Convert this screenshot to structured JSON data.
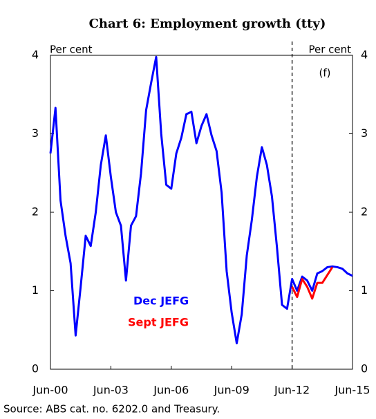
{
  "chart_data": {
    "type": "line",
    "title": "Chart 6: Employment growth (tty)",
    "y_label": "Per cent",
    "y2_label": "Per cent",
    "annotation": "(f)",
    "source": "Source: ABS cat. no. 6202.0 and Treasury.",
    "categories": [
      "Jun-00",
      null,
      null,
      null,
      null,
      null,
      null,
      null,
      null,
      null,
      null,
      null,
      "Jun-03",
      null,
      null,
      null,
      null,
      null,
      null,
      null,
      null,
      null,
      null,
      null,
      "Jun-06",
      null,
      null,
      null,
      null,
      null,
      null,
      null,
      null,
      null,
      null,
      null,
      "Jun-09",
      null,
      null,
      null,
      null,
      null,
      null,
      null,
      null,
      null,
      null,
      null,
      "Jun-12",
      null,
      null,
      null,
      null,
      null,
      null,
      null,
      null,
      null,
      null,
      null,
      "Jun-15"
    ],
    "series": [
      {
        "name": "Dec JEFG",
        "color": "#0000ff",
        "values": [
          2.75,
          3.33,
          2.15,
          1.7,
          1.35,
          0.43,
          1.05,
          1.7,
          1.57,
          2.0,
          2.6,
          2.98,
          2.45,
          2.0,
          1.83,
          1.13,
          1.83,
          1.95,
          2.5,
          3.3,
          3.65,
          3.98,
          3.0,
          2.35,
          2.3,
          2.75,
          2.95,
          3.25,
          3.28,
          2.88,
          3.1,
          3.25,
          2.98,
          2.78,
          2.25,
          1.25,
          0.72,
          0.33,
          0.7,
          1.45,
          1.9,
          2.45,
          2.83,
          2.6,
          2.2,
          1.55,
          0.82,
          0.77,
          1.15,
          1.0,
          1.18,
          1.13,
          1.0,
          1.22,
          1.25,
          1.3,
          1.31,
          1.3,
          1.28,
          1.22,
          1.19
        ]
      },
      {
        "name": "Sept JEFG",
        "color": "#ff0000",
        "values": [
          null,
          null,
          null,
          null,
          null,
          null,
          null,
          null,
          null,
          null,
          null,
          null,
          null,
          null,
          null,
          null,
          null,
          null,
          null,
          null,
          null,
          null,
          null,
          null,
          null,
          null,
          null,
          null,
          null,
          null,
          null,
          null,
          null,
          null,
          null,
          null,
          null,
          null,
          null,
          null,
          null,
          null,
          null,
          null,
          null,
          null,
          null,
          null,
          1.05,
          0.92,
          1.15,
          1.05,
          0.9,
          1.1,
          1.1,
          1.2,
          1.3,
          null,
          null,
          null,
          null
        ]
      }
    ],
    "ylim": [
      0,
      4
    ],
    "yticks": [
      0,
      1,
      2,
      3,
      4
    ],
    "y2lim": [
      0,
      4
    ],
    "y2ticks": [
      0,
      1,
      2,
      3,
      4
    ]
  }
}
